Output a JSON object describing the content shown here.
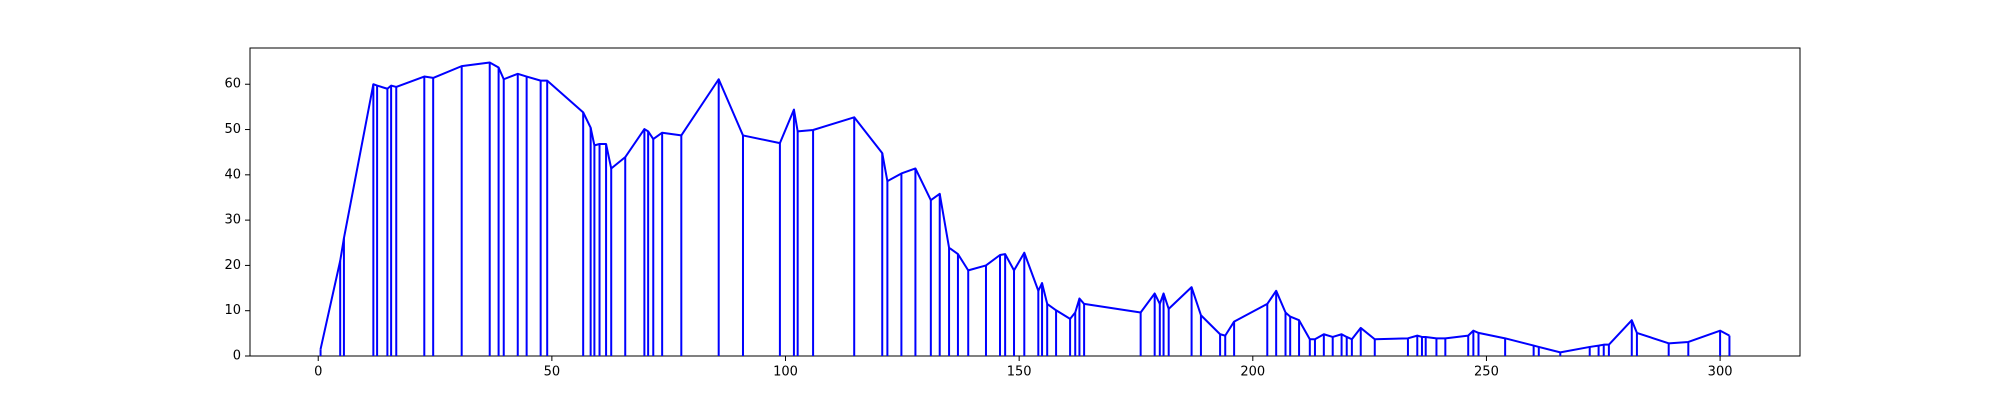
{
  "chart_data": {
    "type": "line",
    "color": "#0000ff",
    "stems": true,
    "x": [
      0.5,
      4.7,
      5.5,
      11.8,
      12.6,
      14.8,
      15.6,
      16.7,
      22.7,
      24.6,
      30.7,
      36.7,
      38.6,
      39.7,
      42.7,
      44.6,
      47.6,
      49,
      56.7,
      58.3,
      59.1,
      60.2,
      61.6,
      62.7,
      65.7,
      69.8,
      70.6,
      71.7,
      73.6,
      77.7,
      85.7,
      90.9,
      98.8,
      101.8,
      102.6,
      105.9,
      114.7,
      120.7,
      121.8,
      124.8,
      127.8,
      131.1,
      133,
      135,
      136.9,
      139.1,
      142.9,
      145.9,
      147,
      148.9,
      151.1,
      154.1,
      154.9,
      156,
      157.9,
      160.9,
      162,
      162.9,
      163.9,
      176,
      179,
      180.1,
      180.9,
      182,
      186.9,
      188.9,
      193,
      194.1,
      196,
      203.1,
      205,
      207,
      208,
      209.9,
      212.2,
      213.3,
      215.2,
      217.1,
      219,
      220.1,
      221.2,
      223.1,
      226.1,
      233.2,
      235.2,
      236.2,
      237,
      239.3,
      241.2,
      246.1,
      247.2,
      248.3,
      254,
      260.1,
      261.2,
      265.8,
      272.1,
      274,
      275.1,
      276.2,
      281.1,
      282.2,
      289,
      293.2,
      300,
      302
    ],
    "values": [
      1.5,
      21,
      26,
      60,
      59.7,
      59,
      59.7,
      59.4,
      61.7,
      61.4,
      64,
      64.8,
      63.7,
      61.1,
      62.3,
      61.7,
      60.8,
      60.8,
      53.8,
      50.4,
      46.5,
      46.8,
      46.8,
      41.4,
      43.9,
      50.1,
      49.6,
      47.9,
      49.3,
      48.7,
      61.1,
      48.7,
      47,
      54.4,
      49.6,
      49.9,
      52.7,
      44.8,
      38.6,
      40.3,
      41.4,
      34.4,
      35.8,
      23.9,
      22.5,
      18.9,
      20,
      22.3,
      22.5,
      18.9,
      22.8,
      14.4,
      16.1,
      11.5,
      10.1,
      8.2,
      9.6,
      12.7,
      11.5,
      9.6,
      13.8,
      11.5,
      13.8,
      10.4,
      15.2,
      9,
      4.8,
      4.5,
      7.6,
      11.5,
      14.4,
      9.6,
      8.7,
      7.9,
      3.7,
      3.7,
      4.8,
      4.2,
      4.8,
      4.2,
      3.7,
      6.2,
      3.7,
      3.9,
      4.5,
      4.2,
      4.2,
      3.9,
      3.9,
      4.5,
      5.6,
      5.1,
      3.9,
      2.3,
      2,
      0.8,
      2,
      2.3,
      2.5,
      2.5,
      7.9,
      5.1,
      2.8,
      3.1,
      5.6,
      4.5
    ],
    "xlim": [
      -14.6,
      317.1
    ],
    "ylim": [
      0,
      68
    ],
    "xticks": [
      0,
      50,
      100,
      150,
      200,
      250,
      300
    ],
    "yticks": [
      0,
      10,
      20,
      30,
      40,
      50,
      60
    ]
  }
}
